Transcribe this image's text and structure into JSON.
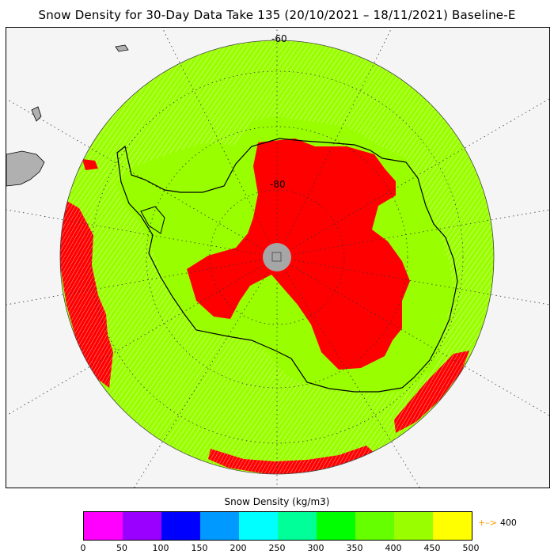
{
  "title": "Snow Density for 30-Day Data Take 135 (20/10/2021 – 18/11/2021) Baseline-E",
  "map": {
    "lat_labels": [
      "-60",
      "-80"
    ],
    "colors": {
      "background": "#f5f5f5",
      "density_low_range": "#99ff00",
      "density_high_range": "#ff0000",
      "land": "#b0b0b0",
      "pole_hole": "#a6a6a6",
      "grid": "#333333"
    }
  },
  "colorbar": {
    "title": "Snow Density (kg/m3)",
    "segments": [
      "#ff00ff",
      "#9900ff",
      "#0000ff",
      "#0099ff",
      "#00ffff",
      "#00ff99",
      "#00ff00",
      "#66ff00",
      "#99ff00",
      "#ffff00",
      "#ff9900"
    ],
    "tick_labels": [
      "0",
      "50",
      "100",
      "150",
      "200",
      "250",
      "300",
      "350",
      "400",
      "450",
      "500"
    ],
    "overflow_label": "400",
    "overflow_arrow": "+–>"
  }
}
